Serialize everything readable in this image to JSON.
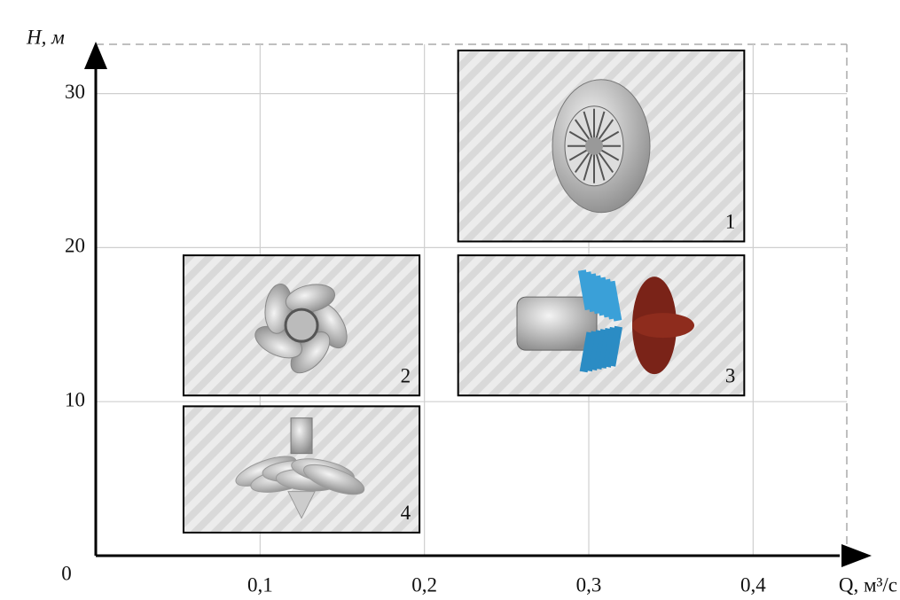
{
  "chart_data": {
    "type": "range",
    "x_label": "Q, м³/с",
    "y_label": "H, м",
    "xlim": [
      0,
      0.457
    ],
    "ylim": [
      0,
      33.2
    ],
    "xticks": [
      {
        "value": 0.1,
        "label": "0,1"
      },
      {
        "value": 0.2,
        "label": "0,2"
      },
      {
        "value": 0.3,
        "label": "0,3"
      },
      {
        "value": 0.4,
        "label": "0,4"
      }
    ],
    "yticks": [
      0,
      10,
      20,
      30
    ],
    "grid": true,
    "boxes": [
      {
        "label": "1",
        "x": [
          0.2205,
          0.3946
        ],
        "y": [
          20.4,
          32.8
        ]
      },
      {
        "label": "2",
        "x": [
          0.0534,
          0.197
        ],
        "y": [
          10.4,
          19.5
        ]
      },
      {
        "label": "3",
        "x": [
          0.2205,
          0.3946
        ],
        "y": [
          10.4,
          19.5
        ]
      },
      {
        "label": "4",
        "x": [
          0.0534,
          0.197
        ],
        "y": [
          1.5,
          9.7
        ]
      }
    ]
  }
}
